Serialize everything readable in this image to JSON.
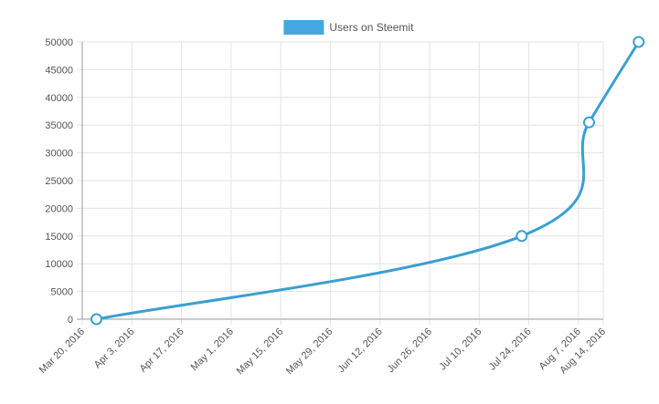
{
  "chart_data": {
    "type": "line",
    "title": "",
    "xlabel": "",
    "ylabel": "",
    "x_tick_labels": [
      "Mar 20, 2016",
      "Apr 3, 2016",
      "Apr 17, 2016",
      "May 1, 2016",
      "May 15, 2016",
      "May 29, 2016",
      "Jun 12, 2016",
      "Jun 26, 2016",
      "Jul 10, 2016",
      "Jul 24, 2016",
      "Aug 7, 2016",
      "Aug 14, 2016"
    ],
    "x_tick_dates": [
      "2016-03-20",
      "2016-04-03",
      "2016-04-17",
      "2016-05-01",
      "2016-05-15",
      "2016-05-29",
      "2016-06-12",
      "2016-06-26",
      "2016-07-10",
      "2016-07-24",
      "2016-08-07",
      "2016-08-14"
    ],
    "xlim": [
      "2016-03-20",
      "2016-08-14"
    ],
    "ylim": [
      0,
      50000
    ],
    "y_ticks": [
      0,
      5000,
      10000,
      15000,
      20000,
      25000,
      30000,
      35000,
      40000,
      45000,
      50000
    ],
    "grid": true,
    "legend": {
      "position": "top-center"
    },
    "series": [
      {
        "name": "Users on Steemit",
        "color": "#3a9fd0",
        "legend_color": "#45a8e0",
        "points": [
          {
            "x": "2016-03-24",
            "y": 0
          },
          {
            "x": "2016-07-22",
            "y": 15000
          },
          {
            "x": "2016-08-10",
            "y": 35500
          },
          {
            "x": "2016-08-24",
            "y": 50000
          }
        ]
      }
    ]
  }
}
